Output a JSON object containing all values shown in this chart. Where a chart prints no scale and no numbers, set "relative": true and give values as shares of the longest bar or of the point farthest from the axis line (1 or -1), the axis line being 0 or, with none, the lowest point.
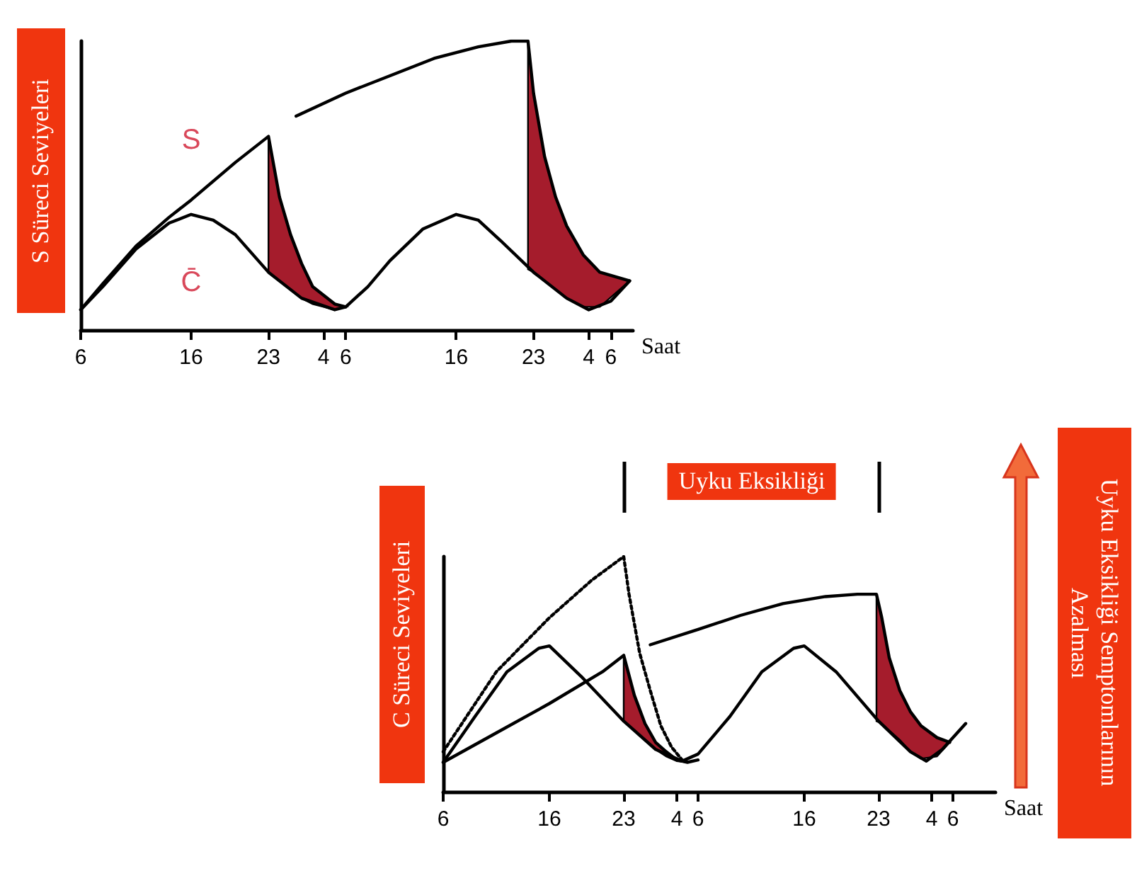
{
  "chart_data": [
    {
      "type": "line",
      "ylabel": "S Süreci Seviyeleri",
      "xlabel": "Saat",
      "relative": true,
      "tick_labels": "x",
      "marker": "none",
      "xlim": [
        "--01-01T06:00",
        "--01-03T08:00"
      ],
      "xticks": [
        {
          "value": "--01-01T06:00",
          "label": "6"
        },
        {
          "value": "--01-01T16:00",
          "label": "16"
        },
        {
          "value": "--01-01T23:00",
          "label": "23"
        },
        {
          "value": "--01-02T04:00",
          "label": "4"
        },
        {
          "value": "--01-02T06:00",
          "label": "6"
        },
        {
          "value": "--01-02T16:00",
          "label": "16"
        },
        {
          "value": "--01-02T23:00",
          "label": "23"
        },
        {
          "value": "--01-03T04:00",
          "label": "4"
        },
        {
          "value": "--01-03T06:00",
          "label": "6"
        }
      ],
      "series": [
        {
          "name": "C̄",
          "color": "#000000",
          "x": [
            "--01-01T06:00",
            "--01-01T08:00",
            "--01-01T11:00",
            "--01-01T14:00",
            "--01-01T16:00",
            "--01-01T18:00",
            "--01-01T20:00",
            "--01-01T23:00",
            "--01-02T02:00",
            "--01-02T05:00",
            "--01-02T06:00",
            "--01-02T08:00",
            "--01-02T10:00",
            "--01-02T13:00",
            "--01-02T16:00",
            "--01-02T18:00",
            "--01-02T20:00",
            "--01-02T23:00",
            "--01-03T02:00",
            "--01-03T04:00",
            "--01-03T06:00",
            "--01-03T07:42"
          ],
          "values": [
            0.07,
            0.15,
            0.28,
            0.37,
            0.4,
            0.38,
            0.33,
            0.2,
            0.11,
            0.07,
            0.08,
            0.15,
            0.24,
            0.35,
            0.4,
            0.38,
            0.31,
            0.2,
            0.11,
            0.07,
            0.1,
            0.17
          ]
        },
        {
          "name": "S",
          "color": "#000000",
          "x": [
            "--01-01T06:00",
            "--01-01T08:00",
            "--01-01T11:00",
            "--01-01T14:00",
            "--01-01T16:00",
            "--01-01T20:00",
            "--01-01T23:00",
            "--01-02T00:00",
            "--01-02T01:00",
            "--01-02T02:00",
            "--01-02T03:00",
            "--01-02T04:00",
            "--01-02T05:00",
            "--01-02T06:00"
          ],
          "values": [
            0.07,
            0.16,
            0.29,
            0.39,
            0.45,
            0.58,
            0.67,
            0.46,
            0.33,
            0.23,
            0.15,
            0.12,
            0.09,
            0.08
          ],
          "lower": [
            null,
            null,
            null,
            null,
            null,
            null,
            0.2,
            0.17,
            0.14,
            0.11,
            0.09,
            0.08,
            0.07,
            0.08
          ],
          "upper": [
            null,
            null,
            null,
            null,
            null,
            null,
            0.67,
            0.46,
            0.33,
            0.23,
            0.15,
            0.12,
            0.09,
            0.08
          ]
        },
        {
          "color": "#000000",
          "x": [
            "--01-02T01:30",
            "--01-02T06:00",
            "--01-02T10:00",
            "--01-02T14:00",
            "--01-02T18:00",
            "--01-02T21:00",
            "--01-02T22:30",
            "--01-02T23:00",
            "--01-03T00:00",
            "--01-03T01:00",
            "--01-03T02:00",
            "--01-03T03:30",
            "--01-03T05:00",
            "--01-03T07:42"
          ],
          "values": [
            0.74,
            0.82,
            0.88,
            0.94,
            0.98,
            1.0,
            1.0,
            0.82,
            0.6,
            0.46,
            0.36,
            0.26,
            0.2,
            0.17
          ],
          "lower": [
            null,
            null,
            null,
            null,
            null,
            null,
            0.21,
            0.2,
            0.17,
            0.14,
            0.11,
            0.08,
            0.08,
            0.17
          ],
          "upper": [
            null,
            null,
            null,
            null,
            null,
            null,
            1.0,
            0.82,
            0.6,
            0.46,
            0.36,
            0.26,
            0.2,
            0.17
          ]
        }
      ]
    },
    {
      "type": "line",
      "ylabel": "C Süreci Seviyeleri",
      "xlabel": "Saat",
      "y2label": "Uyku Eksikliği Semptomlarının Azalması",
      "relative": true,
      "tick_labels": "x",
      "marker": "none",
      "xlim": [
        "--01-01T06:00",
        "--01-03T10:00"
      ],
      "xticks": [
        {
          "value": "--01-01T06:00",
          "label": "6"
        },
        {
          "value": "--01-01T16:00",
          "label": "16"
        },
        {
          "value": "--01-01T23:00",
          "label": "23"
        },
        {
          "value": "--01-02T04:00",
          "label": "4"
        },
        {
          "value": "--01-02T06:00",
          "label": "6"
        },
        {
          "value": "--01-02T16:00",
          "label": "16"
        },
        {
          "value": "--01-02T23:00",
          "label": "23"
        },
        {
          "value": "--01-03T04:00",
          "label": "4"
        },
        {
          "value": "--01-03T06:00",
          "label": "6"
        }
      ],
      "annotations": [
        "Uyku Eksikliği"
      ],
      "series": [
        {
          "color": "#000000",
          "x": [
            "--01-01T06:00",
            "--01-01T09:00",
            "--01-01T12:00",
            "--01-01T15:00",
            "--01-01T16:00",
            "--01-01T19:00",
            "--01-01T23:00",
            "--01-02T02:00",
            "--01-02T04:30",
            "--01-02T06:00",
            "--01-02T09:00",
            "--01-02T12:00",
            "--01-02T15:00",
            "--01-02T16:00",
            "--01-02T19:00",
            "--01-02T23:00",
            "--01-03T02:00",
            "--01-03T03:30",
            "--01-03T05:00",
            "--01-03T07:12"
          ],
          "values": [
            0.125,
            0.32,
            0.51,
            0.61,
            0.62,
            0.49,
            0.3,
            0.18,
            0.13,
            0.16,
            0.32,
            0.51,
            0.61,
            0.62,
            0.51,
            0.3,
            0.17,
            0.13,
            0.18,
            0.29
          ]
        },
        {
          "color": "#000000",
          "x": [
            "--01-01T06:00",
            "--01-01T11:00",
            "--01-01T16:00",
            "--01-01T21:00",
            "--01-01T23:00",
            "--01-02T00:00",
            "--01-02T01:00",
            "--01-02T02:00",
            "--01-02T03:00",
            "--01-02T04:00",
            "--01-02T05:00",
            "--01-02T06:00"
          ],
          "values": [
            0.125,
            0.25,
            0.375,
            0.51,
            0.58,
            0.41,
            0.29,
            0.21,
            0.17,
            0.135,
            0.125,
            0.135
          ],
          "lower": [
            null,
            null,
            null,
            null,
            0.3,
            0.26,
            0.22,
            0.18,
            0.15,
            0.13,
            0.125,
            null
          ],
          "upper": [
            null,
            null,
            null,
            null,
            0.58,
            0.41,
            0.29,
            0.21,
            0.17,
            0.135,
            0.125,
            null
          ]
        },
        {
          "color": "#000000",
          "x": [
            "--01-02T01:30",
            "--01-02T06:00",
            "--01-02T10:00",
            "--01-02T14:00",
            "--01-02T18:00",
            "--01-02T21:00",
            "--01-02T22:48",
            "--01-02T23:18",
            "--01-03T00:00",
            "--01-03T01:00",
            "--01-03T02:00",
            "--01-03T03:00",
            "--01-03T04:30",
            "--01-03T05:42"
          ],
          "values": [
            0.625,
            0.69,
            0.75,
            0.8,
            0.83,
            0.84,
            0.84,
            0.74,
            0.57,
            0.43,
            0.34,
            0.28,
            0.23,
            0.21
          ],
          "lower": [
            null,
            null,
            null,
            null,
            null,
            null,
            0.3,
            0.29,
            0.26,
            0.22,
            0.17,
            0.14,
            0.15,
            0.21
          ],
          "upper": [
            null,
            null,
            null,
            null,
            null,
            null,
            0.84,
            0.74,
            0.57,
            0.43,
            0.34,
            0.28,
            0.23,
            0.21
          ]
        },
        {
          "color": "#000000",
          "line_style": "dotted",
          "x": [
            "--01-01T06:00",
            "--01-01T11:00",
            "--01-01T16:00",
            "--01-01T20:00",
            "--01-01T23:00",
            "--01-01T23:30",
            "--01-02T00:30",
            "--01-02T01:30",
            "--01-02T02:30",
            "--01-02T03:30",
            "--01-02T04:30"
          ],
          "values": [
            0.17,
            0.51,
            0.74,
            0.9,
            1.0,
            0.84,
            0.59,
            0.43,
            0.28,
            0.19,
            0.135
          ]
        }
      ]
    }
  ]
}
